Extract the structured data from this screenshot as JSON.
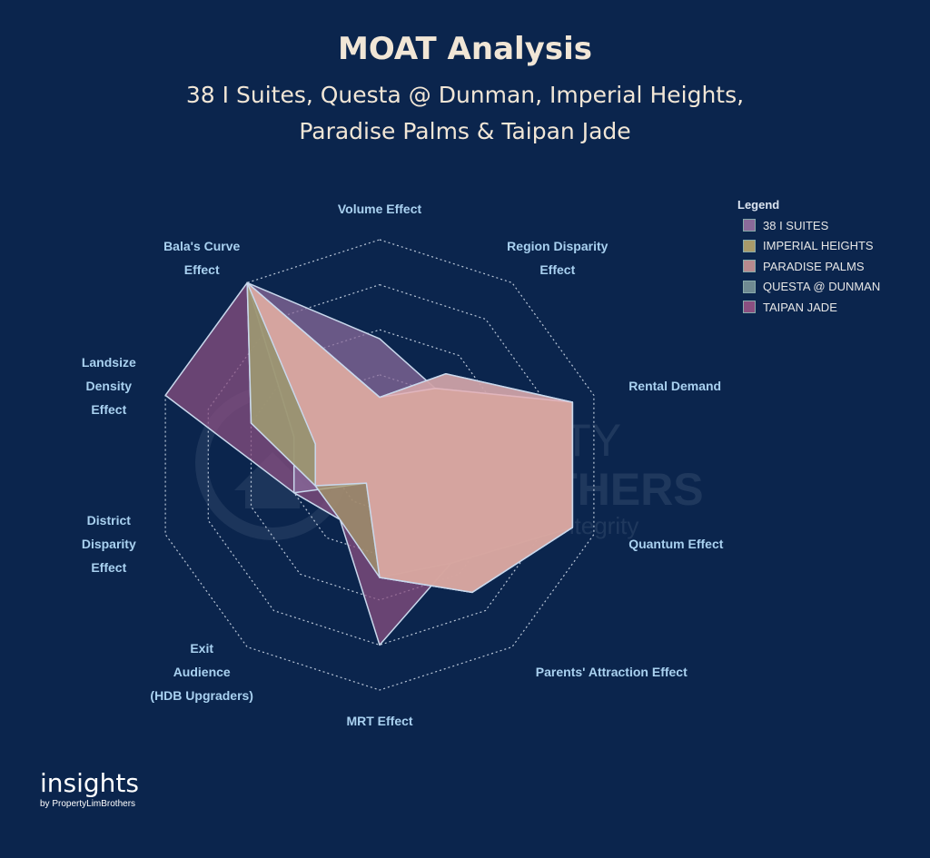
{
  "header": {
    "title": "MOAT Analysis",
    "subtitle_line1": "38 I Suites, Questa @ Dunman, Imperial Heights,",
    "subtitle_line2": "Paradise Palms & Taipan Jade"
  },
  "legend": {
    "title": "Legend",
    "items": [
      {
        "label": "38 I SUITES",
        "color": "#8a6a9a"
      },
      {
        "label": "IMPERIAL HEIGHTS",
        "color": "#a89a6a"
      },
      {
        "label": "PARADISE PALMS",
        "color": "#b78a8e"
      },
      {
        "label": "QUESTA @ DUNMAN",
        "color": "#6f8a92"
      },
      {
        "label": "TAIPAN JADE",
        "color": "#8a4f80"
      }
    ]
  },
  "watermark": {
    "line1": "PROPERTY",
    "line2": "LIMBROTHERS",
    "line3": "Real Estate With Integrity"
  },
  "brand": {
    "name": "insights",
    "byline": "by PropertyLimBrothers"
  },
  "chart_data": {
    "type": "radar",
    "title": "MOAT Analysis",
    "axes": [
      {
        "label_lines": [
          "Volume Effect"
        ]
      },
      {
        "label_lines": [
          "Region Disparity",
          "Effect"
        ]
      },
      {
        "label_lines": [
          "Rental Demand"
        ]
      },
      {
        "label_lines": [
          "Quantum Effect"
        ]
      },
      {
        "label_lines": [
          "Parents' Attraction Effect"
        ]
      },
      {
        "label_lines": [
          "MRT Effect"
        ]
      },
      {
        "label_lines": [
          "Exit",
          "Audience",
          "(HDB Upgraders)"
        ]
      },
      {
        "label_lines": [
          "District",
          "Disparity",
          "Effect"
        ]
      },
      {
        "label_lines": [
          "Landsize",
          "Density",
          "Effect"
        ]
      },
      {
        "label_lines": [
          "Bala's Curve",
          "Effect"
        ]
      }
    ],
    "rmax": 5,
    "rings": [
      1,
      2,
      3,
      4,
      5
    ],
    "series": [
      {
        "name": "TAIPAN JADE",
        "color": "#8a4f80",
        "values": [
          1.5,
          2.1,
          4.5,
          4.5,
          2.7,
          4.0,
          1.5,
          2.0,
          5.0,
          5.0
        ]
      },
      {
        "name": "38 I SUITES",
        "color": "#8a6a9a",
        "values": [
          2.8,
          2.1,
          4.5,
          4.5,
          2.7,
          2.5,
          0.5,
          2.0,
          2.0,
          5.0
        ]
      },
      {
        "name": "QUESTA @ DUNMAN",
        "color": "#6f8a92",
        "values": [
          1.5,
          2.5,
          4.5,
          4.5,
          3.5,
          2.5,
          0.5,
          1.5,
          3.0,
          5.0
        ]
      },
      {
        "name": "IMPERIAL HEIGHTS",
        "color": "#a89a6a",
        "values": [
          1.5,
          2.1,
          4.5,
          4.5,
          3.5,
          2.5,
          1.5,
          1.5,
          3.0,
          5.0
        ]
      },
      {
        "name": "PARADISE PALMS",
        "color": "#e8a9ae",
        "values": [
          1.5,
          2.5,
          4.5,
          4.5,
          3.5,
          2.5,
          0.5,
          1.5,
          1.5,
          5.0
        ]
      }
    ],
    "grid": true,
    "legend_position": "top-right"
  }
}
